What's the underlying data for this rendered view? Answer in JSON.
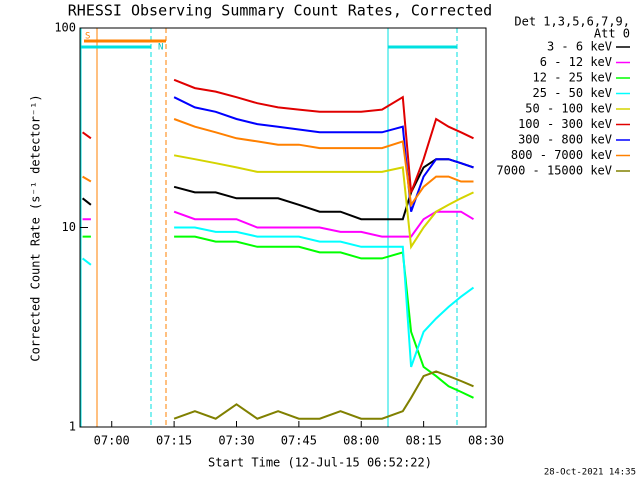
{
  "chart_data": {
    "type": "line",
    "title": "RHESSI Observing Summary Count Rates, Corrected",
    "x_label": "Start Time (12-Jul-15 06:52:22)",
    "y_label": "Corrected Count Rate (s⁻¹ detector⁻¹)",
    "legend_title": [
      "Det 1,3,5,6,7,9,",
      "Att 0"
    ],
    "footer": "28-Oct-2021 14:35",
    "annotations": [
      "S",
      "N"
    ],
    "log_y": true,
    "xlim": [
      412.37,
      510
    ],
    "ylim": [
      1,
      100
    ],
    "xticks": [
      {
        "value": 420,
        "label": "07:00"
      },
      {
        "value": 435,
        "label": "07:15"
      },
      {
        "value": 450,
        "label": "07:30"
      },
      {
        "value": 465,
        "label": "07:45"
      },
      {
        "value": 480,
        "label": "08:00"
      },
      {
        "value": 495,
        "label": "08:15"
      },
      {
        "value": 510,
        "label": "08:30"
      }
    ],
    "yticks": [
      1,
      10,
      100
    ],
    "x": [
      413,
      415,
      417,
      435,
      440,
      445,
      450,
      455,
      460,
      465,
      470,
      475,
      480,
      485,
      490,
      492,
      495,
      498,
      501,
      504,
      507
    ],
    "series": [
      {
        "name": "3 - 6 keV",
        "color": "#000000",
        "values": [
          14,
          13,
          null,
          16,
          15,
          15,
          14,
          14,
          14,
          13,
          12,
          12,
          11,
          11,
          11,
          15,
          20,
          22,
          22,
          21,
          20
        ]
      },
      {
        "name": "6 - 12 keV",
        "color": "#ff00ff",
        "values": [
          11,
          11,
          null,
          12,
          11,
          11,
          11,
          10,
          10,
          10,
          10,
          9.5,
          9.5,
          9,
          9,
          9,
          11,
          12,
          12,
          12,
          11
        ]
      },
      {
        "name": "12 - 25 keV",
        "color": "#00ff00",
        "values": [
          9,
          9,
          null,
          9,
          9,
          8.5,
          8.5,
          8,
          8,
          8,
          7.5,
          7.5,
          7,
          7,
          7.5,
          3,
          2,
          1.8,
          1.6,
          1.5,
          1.4
        ]
      },
      {
        "name": "25 - 50 keV",
        "color": "#00ffff",
        "values": [
          7,
          6.5,
          null,
          10,
          10,
          9.5,
          9.5,
          9,
          9,
          9,
          8.5,
          8.5,
          8,
          8,
          8,
          2,
          3,
          3.5,
          4,
          4.5,
          5
        ]
      },
      {
        "name": "50 - 100 keV",
        "color": "#d4d400",
        "values": [
          null,
          null,
          null,
          23,
          22,
          21,
          20,
          19,
          19,
          19,
          19,
          19,
          19,
          19,
          20,
          8,
          10,
          12,
          13,
          14,
          15
        ]
      },
      {
        "name": "100 - 300 keV",
        "color": "#e00000",
        "values": [
          30,
          28,
          null,
          55,
          50,
          48,
          45,
          42,
          40,
          39,
          38,
          38,
          38,
          39,
          45,
          15,
          22,
          35,
          32,
          30,
          28
        ]
      },
      {
        "name": "300 - 800 keV",
        "color": "#0000ff",
        "values": [
          null,
          null,
          null,
          45,
          40,
          38,
          35,
          33,
          32,
          31,
          30,
          30,
          30,
          30,
          32,
          12,
          18,
          22,
          22,
          21,
          20
        ]
      },
      {
        "name": "800 - 7000 keV",
        "color": "#ff8000",
        "values": [
          18,
          17,
          null,
          35,
          32,
          30,
          28,
          27,
          26,
          26,
          25,
          25,
          25,
          25,
          27,
          13,
          16,
          18,
          18,
          17,
          17
        ]
      },
      {
        "name": "7000 - 15000 keV",
        "color": "#808000",
        "values": [
          null,
          null,
          null,
          1.1,
          1.2,
          1.1,
          1.3,
          1.1,
          1.2,
          1.1,
          1.1,
          1.2,
          1.1,
          1.1,
          1.2,
          1.4,
          1.8,
          1.9,
          1.8,
          1.7,
          1.6
        ]
      }
    ]
  }
}
